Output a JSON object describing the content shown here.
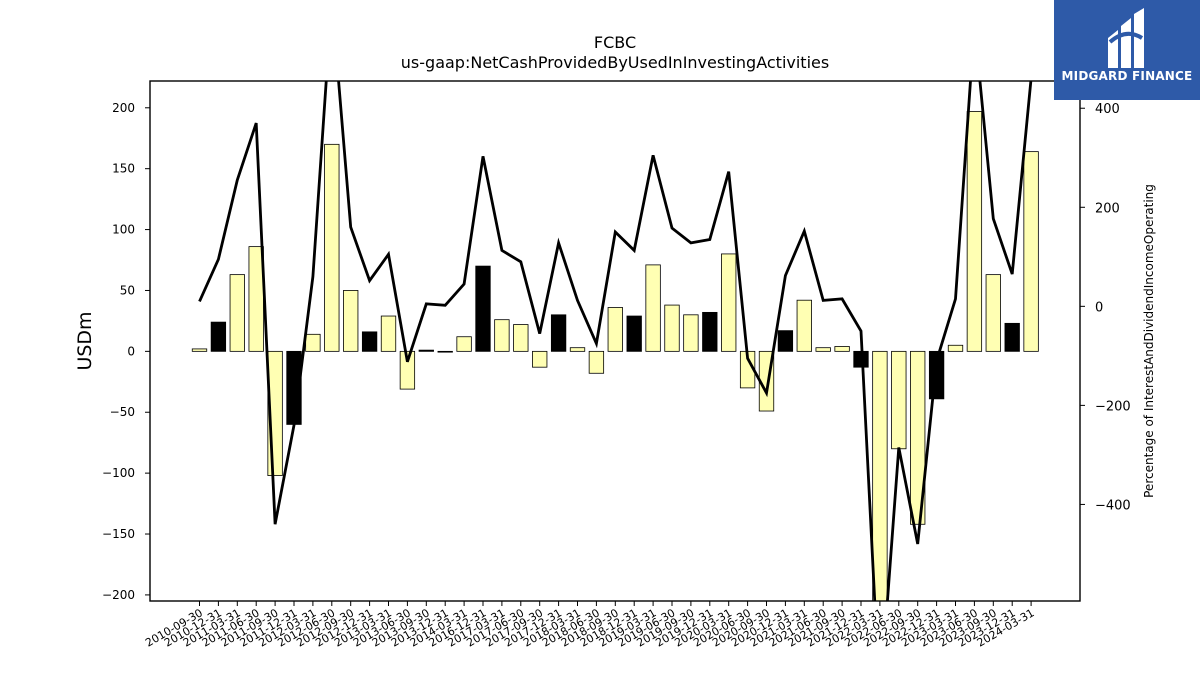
{
  "chart_data": {
    "type": "bar",
    "title": "FCBC",
    "subtitle": "us-gaap:NetCashProvidedByUsedInInvestingActivities",
    "ylabel": "USDm",
    "y2label": "Percentage of InterestAndDividendIncomeOperating",
    "ylim": [
      -205,
      222
    ],
    "y2lim": [
      -595,
      455
    ],
    "yticks": [
      -200,
      -150,
      -100,
      -50,
      0,
      50,
      100,
      150,
      200
    ],
    "y2ticks": [
      -400,
      -200,
      0,
      200,
      400
    ],
    "grid": false,
    "categories": [
      "2010-09-30",
      "2010-12-31",
      "2011-03-31",
      "2011-06-30",
      "2011-09-30",
      "2011-12-31",
      "2012-03-31",
      "2012-06-30",
      "2012-09-30",
      "2012-12-31",
      "2013-03-31",
      "2013-06-30",
      "2013-09-30",
      "2013-12-31",
      "2014-03-31",
      "2016-12-31",
      "2017-03-31",
      "2017-06-30",
      "2017-09-30",
      "2017-12-31",
      "2018-03-31",
      "2018-06-30",
      "2018-09-30",
      "2018-12-31",
      "2019-03-31",
      "2019-06-30",
      "2019-09-30",
      "2019-12-31",
      "2020-03-31",
      "2020-06-30",
      "2020-09-30",
      "2020-12-31",
      "2021-03-31",
      "2021-06-30",
      "2021-09-30",
      "2021-12-31",
      "2022-03-31",
      "2022-06-30",
      "2022-09-30",
      "2022-12-31",
      "2023-03-31",
      "2023-06-30",
      "2023-09-30",
      "2023-12-31",
      "2024-03-31"
    ],
    "series": [
      {
        "kind": "bar",
        "values": [
          2,
          24,
          63,
          86,
          -102,
          -60,
          14,
          170,
          50,
          16,
          29,
          -31,
          1,
          0,
          12,
          70,
          26,
          22,
          -13,
          30,
          3,
          -18,
          36,
          29,
          71,
          38,
          30,
          32,
          80,
          -30,
          -49,
          17,
          42,
          3,
          4,
          -13,
          -215,
          -80,
          -142,
          -39,
          5,
          197,
          63,
          23,
          164
        ],
        "bar_colors": [
          "#ffffb3",
          "#000000",
          "#ffffb3",
          "#ffffb3",
          "#ffffb3",
          "#000000",
          "#ffffb3",
          "#ffffb3",
          "#ffffb3",
          "#000000",
          "#ffffb3",
          "#ffffb3",
          "#000000",
          "#000000",
          "#ffffb3",
          "#000000",
          "#ffffb3",
          "#ffffb3",
          "#ffffb3",
          "#000000",
          "#ffffb3",
          "#ffffb3",
          "#ffffb3",
          "#000000",
          "#ffffb3",
          "#ffffb3",
          "#ffffb3",
          "#000000",
          "#ffffb3",
          "#ffffb3",
          "#ffffb3",
          "#000000",
          "#ffffb3",
          "#ffffb3",
          "#ffffb3",
          "#000000",
          "#ffffb3",
          "#ffffb3",
          "#ffffb3",
          "#000000",
          "#ffffb3",
          "#ffffb3",
          "#ffffb3",
          "#000000",
          "#ffffb3"
        ]
      },
      {
        "kind": "line",
        "axis": "right",
        "color": "#000000",
        "values": [
          10,
          95,
          255,
          370,
          -440,
          -240,
          60,
          620,
          160,
          52,
          105,
          -112,
          5,
          2,
          45,
          303,
          113,
          90,
          -55,
          128,
          12,
          -75,
          150,
          113,
          305,
          158,
          128,
          135,
          272,
          -105,
          -175,
          62,
          152,
          12,
          15,
          -50,
          -800,
          -285,
          -480,
          -110,
          15,
          570,
          177,
          65,
          460
        ]
      }
    ]
  },
  "brand": {
    "name": "MIDGARD FINANCE",
    "bg_color": "#2e5aa8",
    "icon": "midgard-logo-icon"
  }
}
